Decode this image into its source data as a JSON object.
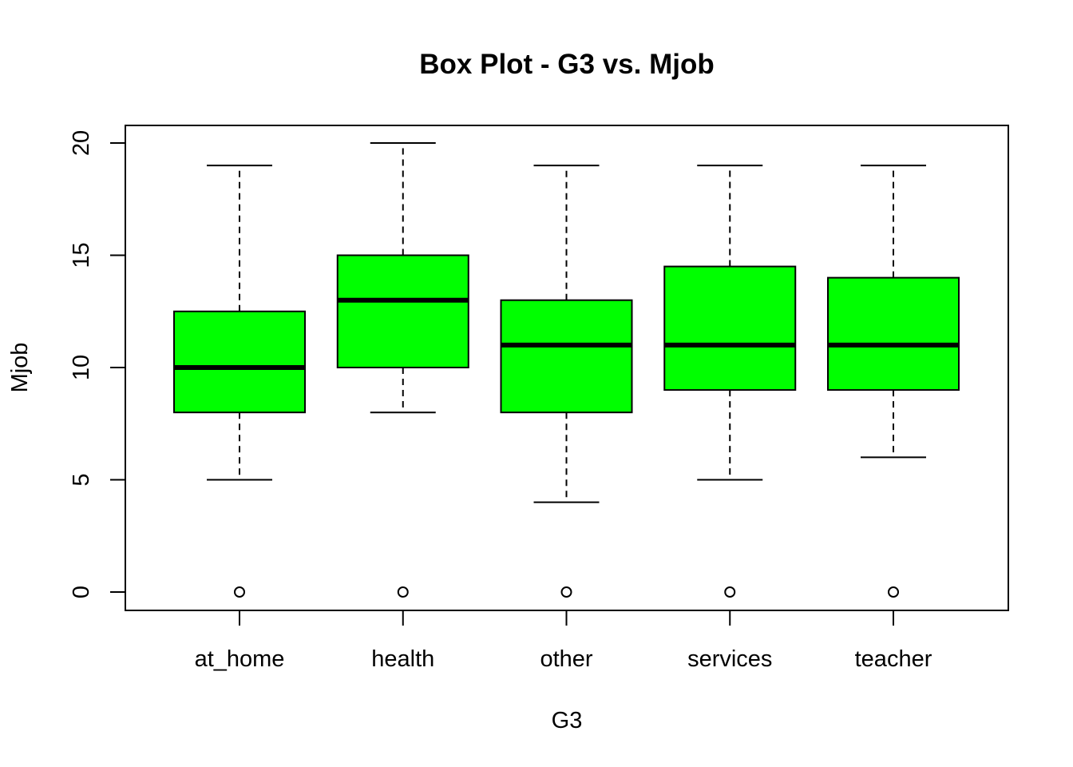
{
  "chart_data": {
    "type": "boxplot",
    "title": "Box Plot - G3 vs. Mjob",
    "xlabel": "G3",
    "ylabel": "Mjob",
    "ylim": [
      0,
      20
    ],
    "yticks": [
      0,
      5,
      10,
      15,
      20
    ],
    "categories": [
      "at_home",
      "health",
      "other",
      "services",
      "teacher"
    ],
    "boxes": [
      {
        "category": "at_home",
        "whisker_low": 5,
        "q1": 8,
        "median": 10,
        "q3": 12.5,
        "whisker_high": 19,
        "outliers": [
          0
        ]
      },
      {
        "category": "health",
        "whisker_low": 8,
        "q1": 10,
        "median": 13,
        "q3": 15,
        "whisker_high": 20,
        "outliers": [
          0
        ]
      },
      {
        "category": "other",
        "whisker_low": 4,
        "q1": 8,
        "median": 11,
        "q3": 13,
        "whisker_high": 19,
        "outliers": [
          0
        ]
      },
      {
        "category": "services",
        "whisker_low": 5,
        "q1": 9,
        "median": 11,
        "q3": 14.5,
        "whisker_high": 19,
        "outliers": [
          0
        ]
      },
      {
        "category": "teacher",
        "whisker_low": 6,
        "q1": 9,
        "median": 11,
        "q3": 14,
        "whisker_high": 19,
        "outliers": [
          0
        ]
      }
    ],
    "box_color": "#00ff00",
    "grid": false,
    "legend": "none"
  }
}
